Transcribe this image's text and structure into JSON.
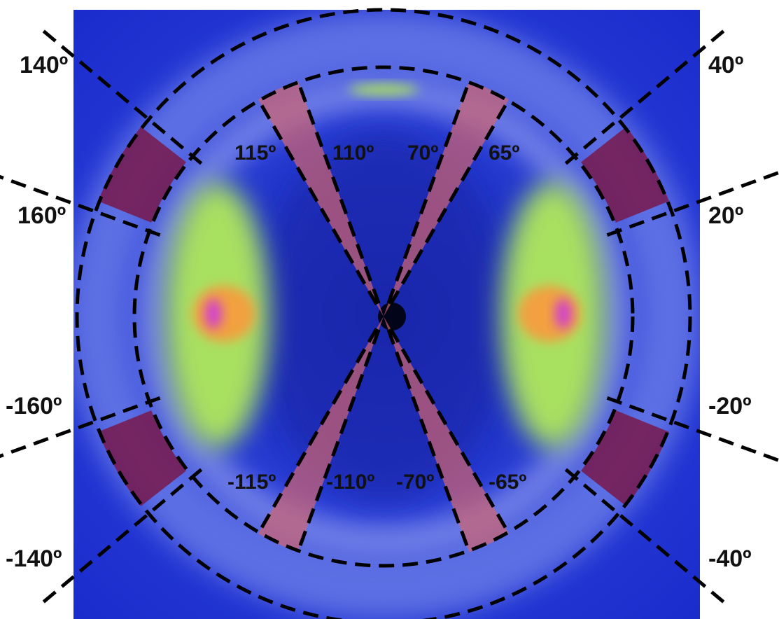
{
  "labels": {
    "outer": [
      "140º",
      "40º",
      "160º",
      "20º",
      "-160º",
      "-20º",
      "-140º",
      "-40º"
    ],
    "inner": [
      "115º",
      "110º",
      "70º",
      "65º",
      "-115º",
      "-110º",
      "-70º",
      "-65º"
    ]
  }
}
